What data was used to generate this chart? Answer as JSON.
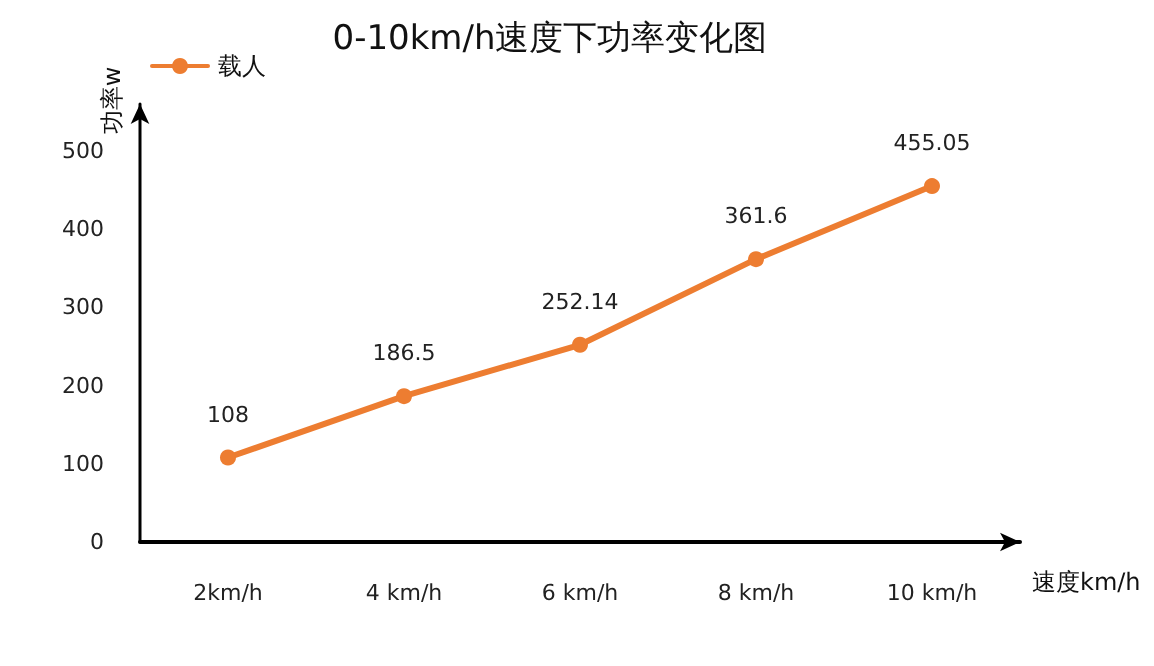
{
  "chart_data": {
    "type": "line",
    "title": "0-10km/h速度下功率变化图",
    "xlabel": "速度km/h",
    "ylabel": "功率w",
    "categories": [
      "2km/h",
      "4 km/h",
      "6 km/h",
      "8 km/h",
      "10 km/h"
    ],
    "series": [
      {
        "name": "载人",
        "color": "#ed7d31",
        "values": [
          108,
          186.5,
          252.14,
          361.6,
          455.05
        ]
      }
    ],
    "ylim": [
      0,
      560
    ],
    "yticks": [
      0,
      100,
      200,
      300,
      400,
      500
    ],
    "grid": false,
    "legend": "top left",
    "marker": "circle",
    "line_style": "solid",
    "data_labels": true
  }
}
